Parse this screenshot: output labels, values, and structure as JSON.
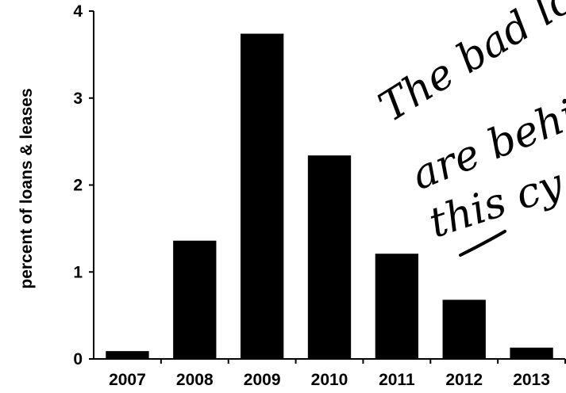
{
  "chart_data": {
    "type": "bar",
    "categories": [
      "2007",
      "2008",
      "2009",
      "2010",
      "2011",
      "2012",
      "2013"
    ],
    "values": [
      0.09,
      1.36,
      3.74,
      2.34,
      1.21,
      0.68,
      0.13
    ],
    "ylabel": "percent of loans & leases",
    "xlabel": "",
    "ylim": [
      0,
      4
    ],
    "yticks": [
      "0",
      "1",
      "2",
      "3",
      "4"
    ],
    "grid": false,
    "bar_color": "#000000",
    "annotation": {
      "lines": [
        "The bad lo",
        "are behi",
        "this cy"
      ],
      "underlined_word": "this"
    }
  }
}
